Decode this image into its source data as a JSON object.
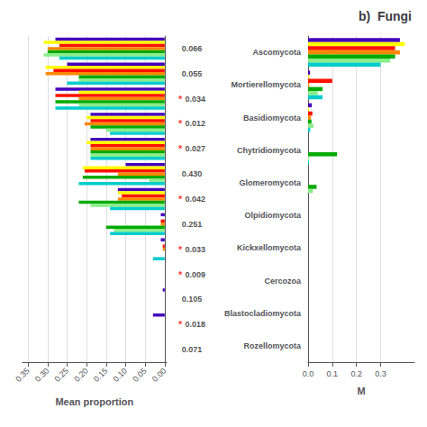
{
  "chart_data": [
    {
      "type": "bar",
      "orientation": "horizontal",
      "xlabel": "Mean proportion",
      "categories": [
        null,
        null,
        null,
        null,
        null,
        null,
        null,
        null,
        null,
        null,
        null,
        null,
        null
      ],
      "series": [
        {
          "color": "#4400BB",
          "values": [
            0.28,
            0.25,
            0.28,
            0.19,
            0.19,
            0.1,
            0.12,
            0.01,
            0.01,
            0.0,
            0.005,
            0.03,
            0.0
          ]
        },
        {
          "color": "#FFFF00",
          "values": [
            0.31,
            0.305,
            0.22,
            0.2,
            0.2,
            0.21,
            0.12,
            0.0,
            0.0,
            0.0,
            0.0,
            0.0,
            0.0
          ]
        },
        {
          "color": "#FF1100",
          "values": [
            0.27,
            0.285,
            0.28,
            0.19,
            0.19,
            0.205,
            0.11,
            0.01,
            0.005,
            0.0,
            0.0,
            0.0,
            0.0
          ]
        },
        {
          "color": "#FF8800",
          "values": [
            0.3,
            0.305,
            0.22,
            0.205,
            0.19,
            0.12,
            0.12,
            0.01,
            0.005,
            0.0,
            0.0,
            0.0,
            0.0
          ]
        },
        {
          "color": "#00AA00",
          "values": [
            0.3,
            0.22,
            0.28,
            0.19,
            0.19,
            0.21,
            0.22,
            0.15,
            0.0,
            0.0,
            0.0,
            0.0,
            0.0
          ]
        },
        {
          "color": "#88EE88",
          "values": [
            0.31,
            0.22,
            0.22,
            0.15,
            0.19,
            0.04,
            0.19,
            0.13,
            0.0,
            0.0,
            0.0,
            0.0,
            0.0
          ]
        },
        {
          "color": "#00CCCC",
          "values": [
            0.27,
            0.25,
            0.28,
            0.14,
            0.19,
            0.22,
            0.14,
            0.14,
            0.03,
            0.0,
            0.0,
            0.0,
            0.0
          ]
        }
      ],
      "xlim": [
        0.365,
        -0.005
      ],
      "xticks": [
        {
          "value": 0,
          "label": "0.00"
        },
        0.05,
        {
          "value": 0.1,
          "label": "0.10"
        },
        0.15,
        {
          "value": 0.2,
          "label": "0.20"
        },
        0.25,
        {
          "value": 0.3,
          "label": "0.30"
        },
        0.35
      ],
      "annotations": [
        [
          {
            "text": "0.066"
          }
        ],
        [
          {
            "text": "0.055"
          }
        ],
        [
          {
            "text": "*",
            "color": "red"
          },
          {
            "text": "0.034"
          }
        ],
        [
          {
            "text": "*",
            "color": "red"
          },
          {
            "text": "0.012"
          }
        ],
        [
          {
            "text": "*",
            "color": "red"
          },
          {
            "text": "0.027"
          }
        ],
        [
          {
            "text": "0.430"
          }
        ],
        [
          {
            "text": "*",
            "color": "red"
          },
          {
            "text": "0.042"
          }
        ],
        [
          {
            "text": "0.251"
          }
        ],
        [
          {
            "text": "*",
            "color": "red"
          },
          {
            "text": "0.033"
          }
        ],
        [
          {
            "text": "*",
            "color": "red"
          },
          {
            "text": "0.009"
          }
        ],
        [
          {
            "text": "0.105"
          }
        ],
        [
          {
            "text": "*",
            "color": "red"
          },
          {
            "text": "0.018"
          }
        ],
        [
          {
            "text": "0.071"
          }
        ]
      ]
    },
    {
      "type": "bar",
      "orientation": "horizontal",
      "title": "b)  Fungi",
      "xlabel": "M",
      "categories": [
        "Ascomycota",
        "Mortierellomycota",
        "Basidiomycota",
        "Chytridiomycota",
        "Glomeromycota",
        "Olpidiomycota",
        "Kickxellomycota",
        "Cercozoa",
        "Blastocladiomycota",
        "Rozellomycota"
      ],
      "series": [
        {
          "color": "#4400BB",
          "values": [
            0.38,
            0.008,
            0.015,
            0.0,
            0.0,
            0.0,
            0.0,
            0.0,
            0.0,
            0.0
          ]
        },
        {
          "color": "#FFFF00",
          "values": [
            0.4,
            0.005,
            0.004,
            0.0,
            0.0,
            0.0,
            0.0,
            0.0,
            0.0,
            0.0
          ]
        },
        {
          "color": "#FF1100",
          "values": [
            0.36,
            0.1,
            0.018,
            0.0,
            0.0,
            0.0,
            0.0,
            0.0,
            0.0,
            0.0
          ]
        },
        {
          "color": "#FF8800",
          "values": [
            0.38,
            0.005,
            0.012,
            0.0,
            0.0,
            0.0,
            0.0,
            0.0,
            0.0,
            0.0
          ]
        },
        {
          "color": "#00AA00",
          "values": [
            0.36,
            0.06,
            0.014,
            0.12,
            0.035,
            0.0,
            0.0,
            0.0,
            0.0,
            0.0
          ]
        },
        {
          "color": "#88EE88",
          "values": [
            0.34,
            0.04,
            0.022,
            0.004,
            0.02,
            0.0,
            0.0,
            0.0,
            0.0,
            0.0
          ]
        },
        {
          "color": "#00CCCC",
          "values": [
            0.3,
            0.06,
            0.009,
            0.004,
            0.0,
            0.0,
            0.0,
            0.0,
            0.0,
            0.0
          ]
        }
      ],
      "xlim": [
        0,
        0.44
      ],
      "xticks": [
        {
          "value": 0,
          "label": "0.0"
        },
        0.1,
        0.2,
        0.3
      ]
    }
  ]
}
